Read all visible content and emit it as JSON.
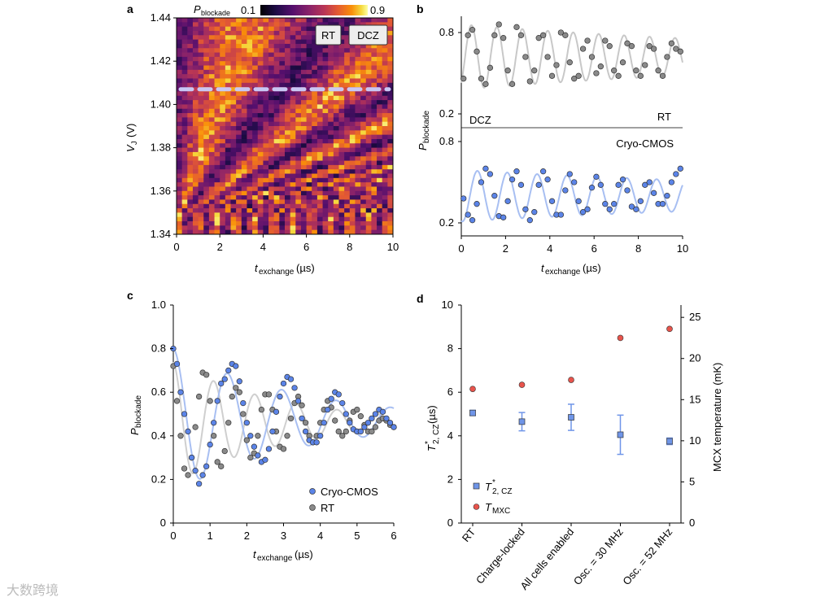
{
  "panels": {
    "a": "a",
    "b": "b",
    "c": "c",
    "d": "d"
  },
  "watermark": "大数跨境",
  "chart_data": [
    {
      "id": "a",
      "type": "heatmap",
      "colorbar": {
        "label_main": "P",
        "label_sub": "blockade",
        "min_label": "0.1",
        "max_label": "0.9",
        "min": 0.1,
        "max": 0.9
      },
      "xlabel_main": "t",
      "xlabel_sub": "exchange",
      "xlabel_unit": "(µs)",
      "ylabel_main": "V",
      "ylabel_sub": "J",
      "ylabel_unit": "(V)",
      "xlim": [
        0,
        10
      ],
      "ylim": [
        1.34,
        1.44
      ],
      "xticks": [
        "0",
        "2",
        "4",
        "6",
        "8",
        "10"
      ],
      "yticks": [
        "1.34",
        "1.36",
        "1.38",
        "1.40",
        "1.42",
        "1.44"
      ],
      "dashed_line_v": 1.407,
      "tags": [
        "RT",
        "DCZ"
      ]
    },
    {
      "id": "b",
      "type": "scatter",
      "xlabel_main": "t",
      "xlabel_sub": "exchange",
      "xlabel_unit": "(µs)",
      "ylabel_main": "P",
      "ylabel_sub": "blockade",
      "xlim": [
        0,
        10
      ],
      "xticks": [
        "0",
        "2",
        "4",
        "6",
        "8",
        "10"
      ],
      "top": {
        "label": "RT",
        "label2": "DCZ",
        "yticks": [
          "0.2",
          "0.8"
        ],
        "ylim": [
          0.2,
          0.8
        ],
        "x": [
          0.1,
          0.3,
          0.5,
          0.7,
          0.9,
          1.1,
          1.3,
          1.5,
          1.7,
          1.9,
          2.1,
          2.3,
          2.5,
          2.7,
          2.9,
          3.1,
          3.3,
          3.5,
          3.7,
          3.9,
          4.1,
          4.3,
          4.5,
          4.7,
          4.9,
          5.1,
          5.3,
          5.5,
          5.7,
          5.9,
          6.1,
          6.3,
          6.5,
          6.7,
          6.9,
          7.1,
          7.3,
          7.5,
          7.7,
          7.9,
          8.1,
          8.3,
          8.5,
          8.7,
          8.9,
          9.1,
          9.3,
          9.5,
          9.7,
          9.9
        ],
        "y": [
          0.46,
          0.78,
          0.82,
          0.66,
          0.46,
          0.42,
          0.54,
          0.78,
          0.86,
          0.76,
          0.52,
          0.42,
          0.84,
          0.78,
          0.62,
          0.44,
          0.52,
          0.76,
          0.78,
          0.62,
          0.48,
          0.56,
          0.8,
          0.78,
          0.58,
          0.46,
          0.48,
          0.68,
          0.74,
          0.62,
          0.5,
          0.55,
          0.74,
          0.7,
          0.52,
          0.48,
          0.58,
          0.72,
          0.7,
          0.52,
          0.48,
          0.56,
          0.7,
          0.68,
          0.52,
          0.48,
          0.62,
          0.72,
          0.68,
          0.66
        ]
      },
      "bottom": {
        "label": "Cryo-CMOS",
        "yticks": [
          "0.2",
          "0.8"
        ],
        "ylim": [
          0.2,
          0.8
        ],
        "x": [
          0.1,
          0.3,
          0.5,
          0.7,
          0.9,
          1.1,
          1.3,
          1.5,
          1.7,
          1.9,
          2.1,
          2.3,
          2.5,
          2.7,
          2.9,
          3.1,
          3.3,
          3.5,
          3.7,
          3.9,
          4.1,
          4.3,
          4.5,
          4.7,
          4.9,
          5.1,
          5.3,
          5.5,
          5.7,
          5.9,
          6.1,
          6.3,
          6.5,
          6.7,
          6.9,
          7.1,
          7.3,
          7.5,
          7.7,
          7.9,
          8.1,
          8.3,
          8.5,
          8.7,
          8.9,
          9.1,
          9.3,
          9.5,
          9.7,
          9.9
        ],
        "y": [
          0.38,
          0.26,
          0.22,
          0.34,
          0.5,
          0.6,
          0.56,
          0.4,
          0.25,
          0.24,
          0.36,
          0.52,
          0.58,
          0.48,
          0.3,
          0.22,
          0.28,
          0.48,
          0.58,
          0.52,
          0.36,
          0.26,
          0.26,
          0.44,
          0.56,
          0.5,
          0.36,
          0.28,
          0.3,
          0.46,
          0.54,
          0.48,
          0.34,
          0.3,
          0.34,
          0.48,
          0.52,
          0.44,
          0.32,
          0.3,
          0.36,
          0.48,
          0.5,
          0.42,
          0.34,
          0.34,
          0.4,
          0.5,
          0.56,
          0.6
        ]
      }
    },
    {
      "id": "c",
      "type": "scatter",
      "xlabel_main": "t",
      "xlabel_sub": "exchange",
      "xlabel_unit": "(µs)",
      "ylabel_main": "P",
      "ylabel_sub": "blockade",
      "xlim": [
        0,
        6
      ],
      "ylim": [
        0,
        1.0
      ],
      "xticks": [
        "0",
        "1",
        "2",
        "3",
        "4",
        "5",
        "6"
      ],
      "yticks": [
        "0",
        "0.2",
        "0.4",
        "0.6",
        "0.8",
        "1.0"
      ],
      "series": [
        {
          "name": "Cryo-CMOS",
          "color": "#5b84e8",
          "x": [
            0.0,
            0.1,
            0.2,
            0.3,
            0.4,
            0.5,
            0.6,
            0.7,
            0.8,
            0.9,
            1.0,
            1.1,
            1.2,
            1.3,
            1.4,
            1.5,
            1.6,
            1.7,
            1.8,
            1.9,
            2.0,
            2.1,
            2.2,
            2.3,
            2.4,
            2.5,
            2.6,
            2.7,
            2.8,
            2.9,
            3.0,
            3.1,
            3.2,
            3.3,
            3.4,
            3.5,
            3.6,
            3.7,
            3.8,
            3.9,
            4.0,
            4.1,
            4.2,
            4.3,
            4.4,
            4.5,
            4.6,
            4.7,
            4.8,
            4.9,
            5.0,
            5.1,
            5.2,
            5.3,
            5.4,
            5.5,
            5.6,
            5.7,
            5.8,
            5.9,
            6.0
          ],
          "y": [
            0.8,
            0.73,
            0.6,
            0.5,
            0.42,
            0.3,
            0.24,
            0.18,
            0.22,
            0.26,
            0.36,
            0.46,
            0.56,
            0.64,
            0.66,
            0.7,
            0.73,
            0.72,
            0.65,
            0.55,
            0.46,
            0.4,
            0.35,
            0.31,
            0.28,
            0.29,
            0.34,
            0.42,
            0.51,
            0.58,
            0.64,
            0.67,
            0.66,
            0.62,
            0.56,
            0.48,
            0.42,
            0.38,
            0.37,
            0.37,
            0.4,
            0.46,
            0.52,
            0.57,
            0.6,
            0.59,
            0.55,
            0.5,
            0.46,
            0.43,
            0.42,
            0.42,
            0.44,
            0.46,
            0.48,
            0.5,
            0.52,
            0.51,
            0.48,
            0.46,
            0.44
          ]
        },
        {
          "name": "RT",
          "color": "#8a8a8a",
          "x": [
            0.0,
            0.1,
            0.2,
            0.3,
            0.4,
            0.5,
            0.6,
            0.7,
            0.8,
            0.9,
            1.0,
            1.1,
            1.2,
            1.3,
            1.4,
            1.5,
            1.6,
            1.7,
            1.8,
            1.9,
            2.0,
            2.1,
            2.2,
            2.3,
            2.4,
            2.5,
            2.6,
            2.7,
            2.8,
            2.9,
            3.0,
            3.1,
            3.2,
            3.3,
            3.4,
            3.5,
            3.6,
            3.7,
            3.8,
            3.9,
            4.0,
            4.1,
            4.2,
            4.3,
            4.4,
            4.5,
            4.6,
            4.7,
            4.8,
            4.9,
            5.0,
            5.1,
            5.2,
            5.3,
            5.4,
            5.5,
            5.6,
            5.7,
            5.8,
            5.9,
            6.0
          ],
          "y": [
            0.72,
            0.56,
            0.4,
            0.25,
            0.22,
            0.3,
            0.44,
            0.58,
            0.69,
            0.68,
            0.56,
            0.4,
            0.28,
            0.26,
            0.33,
            0.46,
            0.58,
            0.62,
            0.6,
            0.5,
            0.38,
            0.3,
            0.32,
            0.4,
            0.52,
            0.59,
            0.59,
            0.52,
            0.42,
            0.35,
            0.34,
            0.4,
            0.48,
            0.55,
            0.58,
            0.54,
            0.46,
            0.4,
            0.37,
            0.4,
            0.46,
            0.52,
            0.56,
            0.53,
            0.47,
            0.42,
            0.4,
            0.42,
            0.47,
            0.51,
            0.52,
            0.49,
            0.45,
            0.42,
            0.42,
            0.44,
            0.47,
            0.48,
            0.47,
            0.45,
            0.44
          ]
        }
      ],
      "legend_position": "bottom-right"
    },
    {
      "id": "d",
      "type": "scatter",
      "categories": [
        "RT",
        "Charge-locked",
        "All cells enabled",
        "Osc. = 30 MHz",
        "Osc. = 52 MHz"
      ],
      "ylabel_left_main": "T",
      "ylabel_left_sup": "*",
      "ylabel_left_sub": "2, CZ",
      "ylabel_left_unit": "(µs)",
      "ylabel_right": "MCX temperature (mK)",
      "ylim_left": [
        0,
        10
      ],
      "ylim_right": [
        0,
        26.5
      ],
      "yticks_left": [
        "0",
        "2",
        "4",
        "6",
        "8",
        "10"
      ],
      "yticks_right": [
        "0",
        "5",
        "10",
        "15",
        "20",
        "25"
      ],
      "series": [
        {
          "name_main": "T",
          "name_sup": "*",
          "name_sub": "2, CZ",
          "axis": "left",
          "color": "#6f95e8",
          "values": [
            5.05,
            4.65,
            4.85,
            4.05,
            3.75
          ],
          "err": [
            0.12,
            0.42,
            0.6,
            0.9,
            0.15
          ]
        },
        {
          "name_main": "T",
          "name_sub": "MXC",
          "axis": "right",
          "color": "#e8544c",
          "values": [
            16.3,
            16.8,
            17.4,
            22.5,
            23.6
          ]
        }
      ],
      "legend_position": "bottom-left"
    }
  ]
}
